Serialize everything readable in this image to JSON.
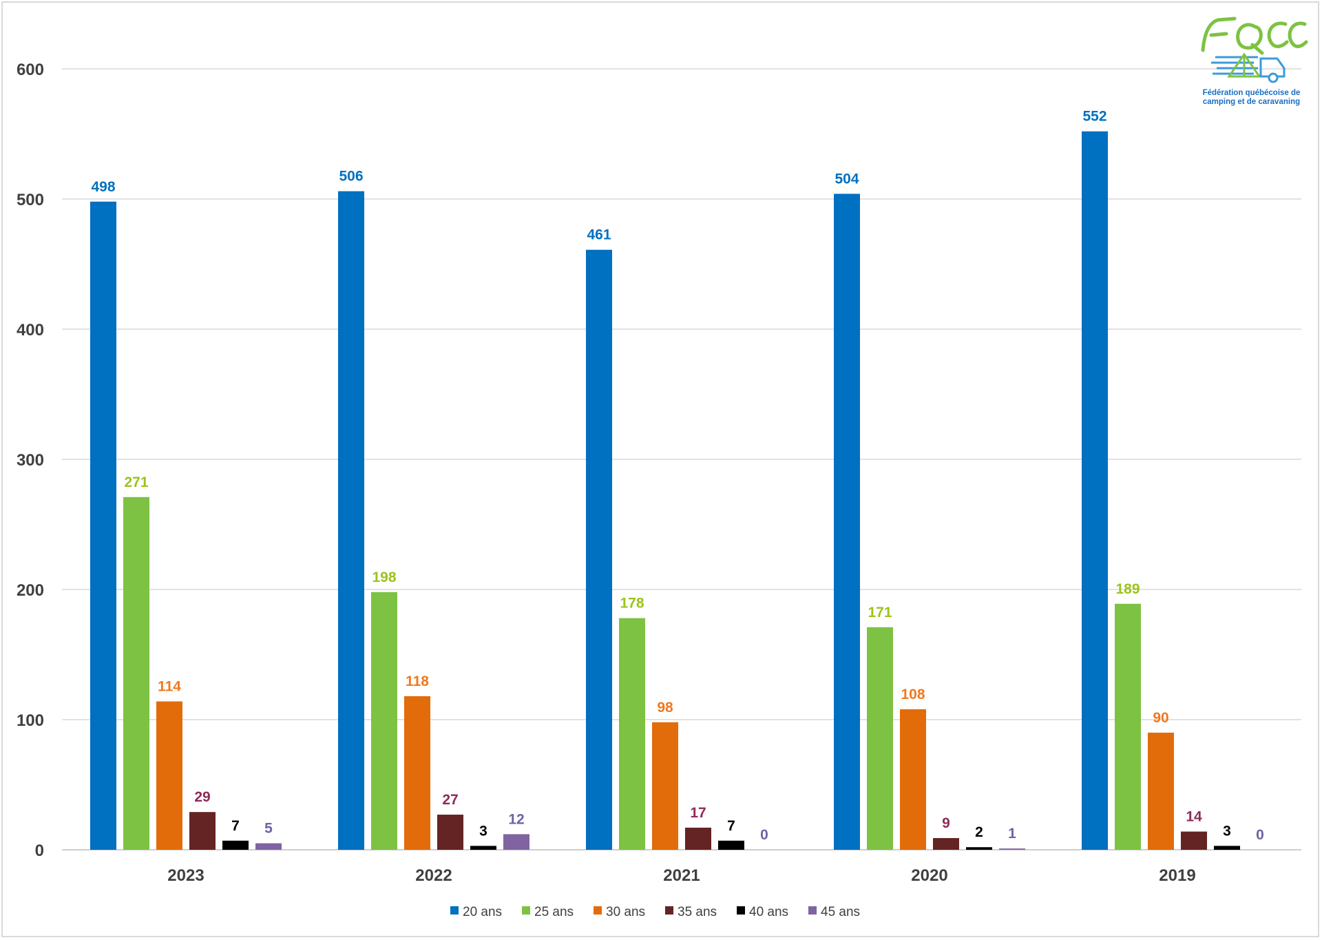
{
  "logo": {
    "abbr": "FQCC",
    "line1": "Fédération québécoise de",
    "line2": "camping et de caravaning"
  },
  "chart_data": {
    "type": "bar",
    "title": "",
    "xlabel": "",
    "ylabel": "",
    "ylim": [
      0,
      600
    ],
    "yticks": [
      0,
      100,
      200,
      300,
      400,
      500,
      600
    ],
    "categories": [
      "2023",
      "2022",
      "2021",
      "2020",
      "2019"
    ],
    "series": [
      {
        "name": "20 ans",
        "color": "#0070C0",
        "label_color": "#0070C0",
        "values": [
          498,
          506,
          461,
          504,
          552
        ]
      },
      {
        "name": "25 ans",
        "color": "#7DC242",
        "label_color": "#9BC31A",
        "values": [
          271,
          198,
          178,
          171,
          189
        ]
      },
      {
        "name": "30 ans",
        "color": "#E36C0A",
        "label_color": "#F07820",
        "values": [
          114,
          118,
          98,
          108,
          90
        ]
      },
      {
        "name": "35 ans",
        "color": "#632423",
        "label_color": "#8E2A5A",
        "values": [
          29,
          27,
          17,
          9,
          14
        ]
      },
      {
        "name": "40 ans",
        "color": "#000000",
        "label_color": "#000000",
        "values": [
          7,
          3,
          7,
          2,
          3
        ]
      },
      {
        "name": "45 ans",
        "color": "#8064A2",
        "label_color": "#6B63A8",
        "values": [
          5,
          12,
          0,
          1,
          0
        ]
      }
    ],
    "legend_position": "bottom",
    "gridlines": true
  }
}
